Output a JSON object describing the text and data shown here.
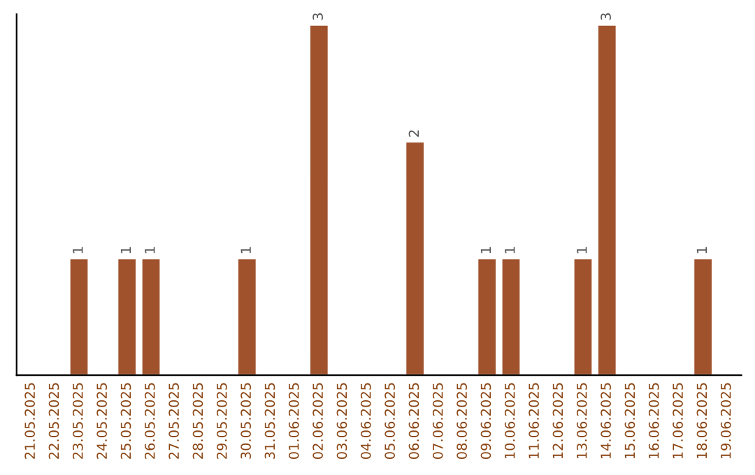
{
  "chart_data": {
    "type": "bar",
    "categories": [
      "21.05.2025",
      "22.05.2025",
      "23.05.2025",
      "24.05.2025",
      "25.05.2025",
      "26.05.2025",
      "27.05.2025",
      "28.05.2025",
      "29.05.2025",
      "30.05.2025",
      "31.05.2025",
      "01.06.2025",
      "02.06.2025",
      "03.06.2025",
      "04.06.2025",
      "05.06.2025",
      "06.06.2025",
      "07.06.2025",
      "08.06.2025",
      "09.06.2025",
      "10.06.2025",
      "11.06.2025",
      "12.06.2025",
      "13.06.2025",
      "14.06.2025",
      "15.06.2025",
      "16.06.2025",
      "17.06.2025",
      "18.06.2025",
      "19.06.2025"
    ],
    "values": [
      null,
      null,
      1,
      null,
      1,
      1,
      null,
      null,
      null,
      1,
      null,
      null,
      3,
      null,
      null,
      null,
      2,
      null,
      null,
      1,
      1,
      null,
      null,
      1,
      3,
      null,
      null,
      null,
      1,
      null
    ],
    "value_labels": [
      null,
      null,
      "1",
      null,
      "1",
      "1",
      null,
      null,
      null,
      "1",
      null,
      null,
      "3",
      null,
      null,
      null,
      "2",
      null,
      null,
      "1",
      "1",
      null,
      null,
      "1",
      "3",
      null,
      null,
      null,
      "1",
      null
    ],
    "color": "#a0522d",
    "tick_labels": "x",
    "grid": false,
    "legend": false
  }
}
